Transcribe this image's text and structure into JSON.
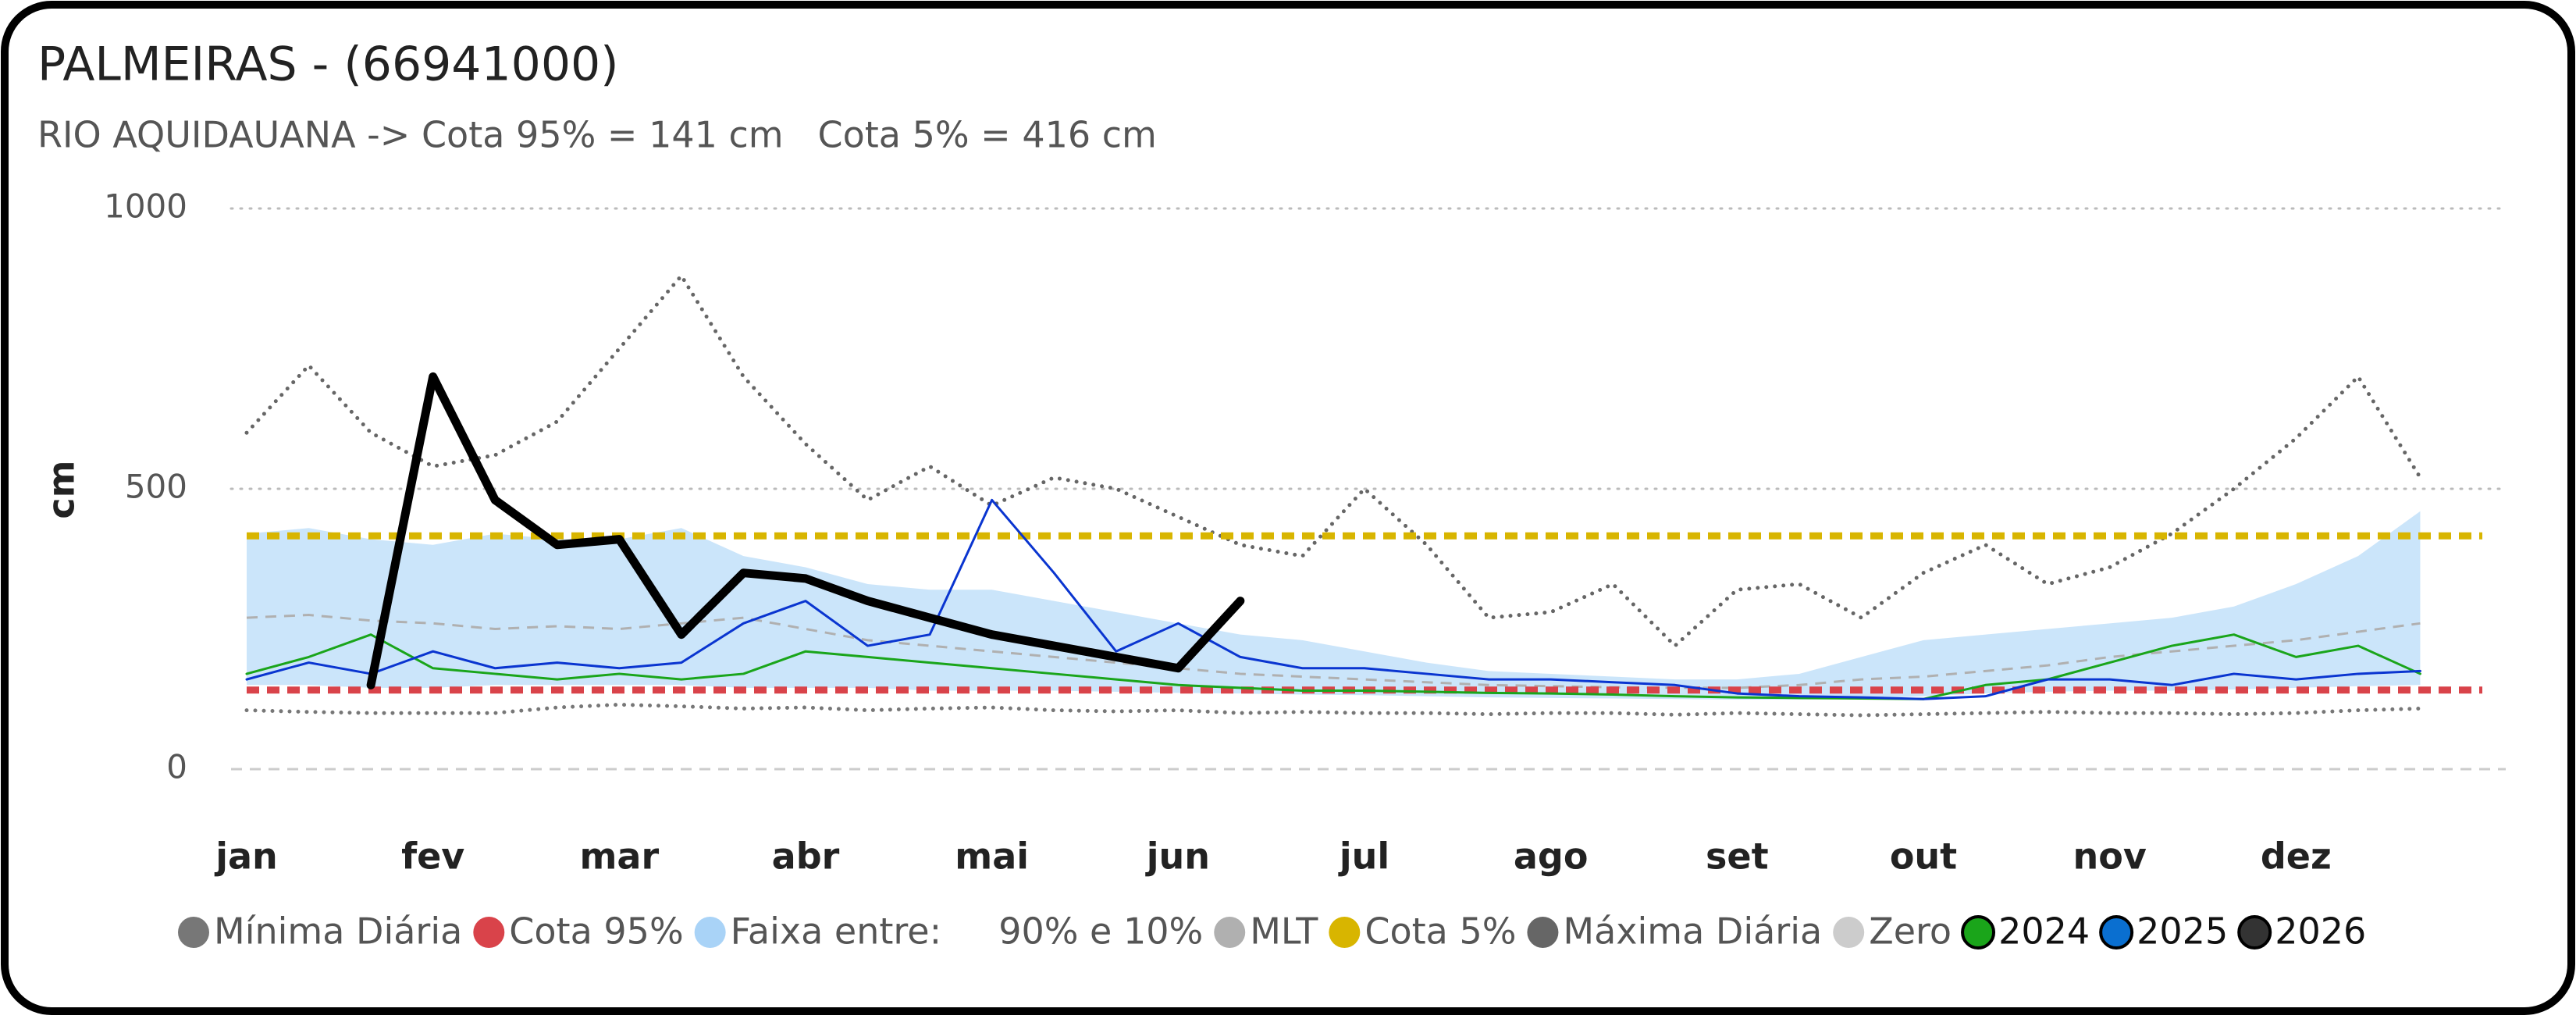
{
  "chart_data": {
    "type": "line",
    "title": "PALMEIRAS - (66941000)",
    "subtitle": "RIO AQUIDAUANA -> Cota 95% = 141 cm   Cota 5% = 416 cm",
    "y_label": "cm",
    "categories": [
      "jan",
      null,
      null,
      "fev",
      null,
      null,
      "mar",
      null,
      null,
      "abr",
      null,
      null,
      "mai",
      null,
      null,
      "jun",
      null,
      null,
      "jul",
      null,
      null,
      "ago",
      null,
      null,
      "set",
      null,
      null,
      "out",
      null,
      null,
      "nov",
      null,
      null,
      "dez",
      null,
      null
    ],
    "ylim": [
      0,
      1000
    ],
    "yticks": [
      0,
      500,
      1000
    ],
    "grid": true,
    "legend": "bottom",
    "series": [
      {
        "name": "Mínima Diária",
        "color": "#777777",
        "style": "dotted",
        "values": [
          105,
          102,
          100,
          100,
          100,
          110,
          115,
          112,
          108,
          110,
          105,
          108,
          110,
          105,
          103,
          105,
          100,
          102,
          100,
          100,
          98,
          100,
          100,
          97,
          100,
          98,
          96,
          98,
          100,
          102,
          100,
          100,
          98,
          100,
          105,
          108
        ]
      },
      {
        "name": "Cota 95%",
        "color": "#d9434a",
        "style": "hline",
        "value": 141
      },
      {
        "name": "Faixa entre:     90% e 10%",
        "color": "#a9d3f7",
        "style": "band",
        "high": [
          420,
          430,
          410,
          400,
          420,
          410,
          410,
          430,
          380,
          360,
          330,
          320,
          320,
          300,
          280,
          260,
          240,
          230,
          210,
          190,
          175,
          170,
          165,
          160,
          160,
          170,
          200,
          230,
          240,
          250,
          260,
          270,
          290,
          330,
          380,
          460
        ],
        "low": [
          150,
          150,
          145,
          145,
          150,
          150,
          150,
          150,
          145,
          145,
          145,
          140,
          140,
          140,
          138,
          136,
          135,
          133,
          132,
          130,
          128,
          127,
          126,
          125,
          124,
          124,
          125,
          130,
          135,
          138,
          140,
          140,
          142,
          145,
          148,
          150
        ]
      },
      {
        "name": "MLT",
        "color": "#b0b0b0",
        "style": "dashed",
        "values": [
          270,
          275,
          265,
          260,
          250,
          255,
          250,
          260,
          270,
          250,
          230,
          220,
          210,
          200,
          190,
          180,
          170,
          165,
          160,
          155,
          150,
          148,
          146,
          145,
          145,
          150,
          160,
          165,
          175,
          185,
          200,
          210,
          220,
          230,
          245,
          260
        ]
      },
      {
        "name": "Cota 5%",
        "color": "#d8b500",
        "style": "hline",
        "value": 416
      },
      {
        "name": "Máxima Diária",
        "color": "#666666",
        "style": "dotted",
        "values": [
          600,
          720,
          600,
          540,
          560,
          620,
          750,
          880,
          700,
          580,
          480,
          540,
          470,
          520,
          500,
          450,
          400,
          380,
          500,
          400,
          270,
          280,
          330,
          220,
          320,
          330,
          270,
          350,
          400,
          330,
          360,
          420,
          500,
          590,
          700,
          520
        ]
      },
      {
        "name": "Zero",
        "color": "#cccccc",
        "style": "hline-light",
        "value": 0
      },
      {
        "name": "2024",
        "color": "#1aa51a",
        "style": "line",
        "values": [
          170,
          200,
          240,
          180,
          170,
          160,
          170,
          160,
          170,
          210,
          200,
          190,
          180,
          170,
          160,
          150,
          145,
          140,
          140,
          138,
          136,
          135,
          133,
          130,
          128,
          127,
          126,
          125,
          150,
          160,
          190,
          220,
          240,
          200,
          220,
          170
        ]
      },
      {
        "name": "2025",
        "color": "#0a35d0",
        "legend_color": "#0a6fd0",
        "style": "line",
        "values": [
          160,
          190,
          170,
          210,
          180,
          190,
          180,
          190,
          260,
          300,
          220,
          240,
          480,
          350,
          210,
          260,
          200,
          180,
          180,
          170,
          160,
          160,
          155,
          150,
          135,
          130,
          128,
          125,
          130,
          160,
          160,
          150,
          170,
          160,
          170,
          175
        ]
      },
      {
        "name": "2026",
        "color": "#000000",
        "legend_color": "#333333",
        "style": "bold",
        "values": [
          null,
          null,
          150,
          700,
          480,
          400,
          410,
          240,
          350,
          340,
          300,
          270,
          240,
          220,
          200,
          180,
          300,
          null,
          null,
          null,
          null,
          null,
          null,
          null,
          null,
          null,
          null,
          null,
          null,
          null,
          null,
          null,
          null,
          null,
          null,
          null
        ]
      }
    ]
  }
}
